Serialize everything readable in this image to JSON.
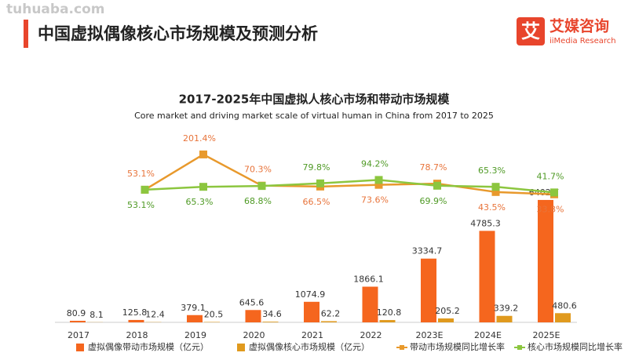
{
  "watermark": "tuhuaba.com",
  "header": {
    "title": "中国虚拟偶像核心市场规模及预测分析",
    "logo_icon": "艾",
    "logo_name": "艾媒咨询",
    "logo_sub": "iiMedia Research"
  },
  "chart_data": {
    "type": "bar",
    "title": "2017-2025年中国虚拟人核心市场和带动市场规模",
    "subtitle": "Core market and driving market scale of virtual human in China from 2017 to 2025",
    "categories": [
      "2017",
      "2018",
      "2019",
      "2020",
      "2021",
      "2022",
      "2023E",
      "2024E",
      "2025E"
    ],
    "ylim": [
      0,
      8000
    ],
    "y2lim": [
      0,
      300
    ],
    "series": [
      {
        "name": "虚拟偶像带动市场规模（亿元）",
        "color": "#f5661e",
        "values": [
          80.9,
          125.8,
          379.1,
          645.6,
          1074.9,
          1866.1,
          3334.7,
          4785.3,
          6402.7
        ]
      },
      {
        "name": "虚拟偶像核心市场规模（亿元）",
        "color": "#e09a1e",
        "values": [
          8.1,
          12.4,
          20.5,
          34.6,
          62.2,
          120.8,
          205.2,
          339.2,
          480.6
        ]
      },
      {
        "name": "带动市场规模同比增长率",
        "type": "line",
        "axis": "y2",
        "color": "#e8992c",
        "label_color": "#e8743b",
        "values": [
          null,
          53.1,
          201.4,
          70.3,
          66.5,
          73.6,
          78.7,
          43.5,
          33.8
        ],
        "value_labels": [
          null,
          "53.1%",
          "201.4%",
          "70.3%",
          "66.5%",
          "73.6%",
          "78.7%",
          "43.5%",
          "33.8%"
        ]
      },
      {
        "name": "核心市场规模同比增长率",
        "type": "line",
        "axis": "y2",
        "color": "#8cc63f",
        "label_color": "#4f9a25",
        "values": [
          null,
          53.1,
          65.3,
          68.8,
          79.8,
          94.2,
          69.9,
          65.3,
          41.7
        ],
        "value_labels": [
          null,
          "53.1%",
          "65.3%",
          "68.8%",
          "79.8%",
          "94.2%",
          "69.9%",
          "65.3%",
          "41.7%"
        ]
      }
    ]
  }
}
